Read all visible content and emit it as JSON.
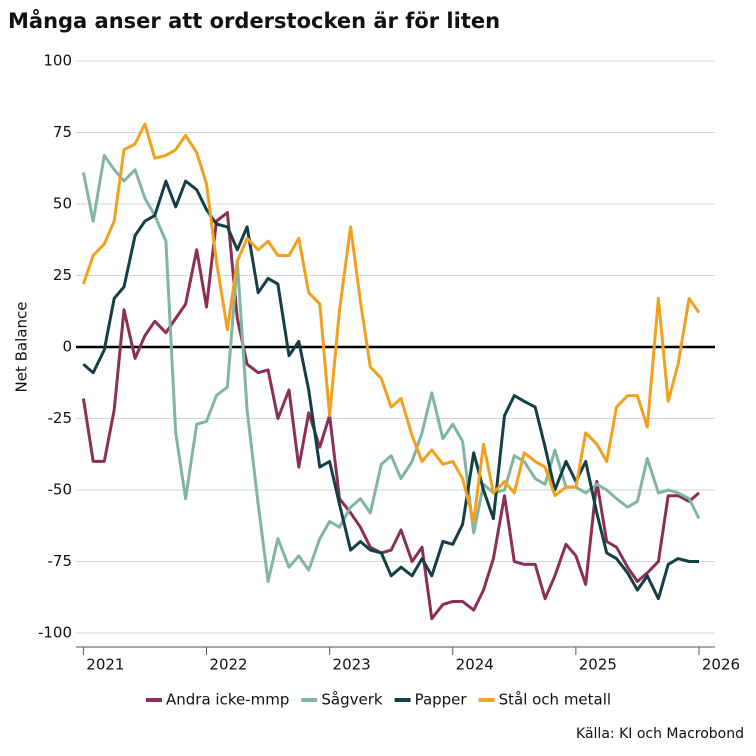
{
  "chart_data": {
    "type": "line",
    "title": "Många anser att orderstocken är för liten",
    "ylabel": "Net Balance",
    "source": "Källa: KI och Macrobond",
    "x": [
      2021,
      2021.08,
      2021.17,
      2021.25,
      2021.33,
      2021.42,
      2021.5,
      2021.58,
      2021.67,
      2021.75,
      2021.83,
      2021.92,
      2022,
      2022.08,
      2022.17,
      2022.25,
      2022.33,
      2022.42,
      2022.5,
      2022.58,
      2022.67,
      2022.75,
      2022.83,
      2022.92,
      2023,
      2023.08,
      2023.17,
      2023.25,
      2023.33,
      2023.42,
      2023.5,
      2023.58,
      2023.67,
      2023.75,
      2023.83,
      2023.92,
      2024,
      2024.08,
      2024.17,
      2024.25,
      2024.33,
      2024.42,
      2024.5,
      2024.58,
      2024.67,
      2024.75,
      2024.83,
      2024.92,
      2025,
      2025.08,
      2025.17,
      2025.25,
      2025.33,
      2025.42,
      2025.5,
      2025.58,
      2025.67,
      2025.75,
      2025.83,
      2025.92,
      2026
    ],
    "xlim": [
      2020.94,
      2026.13
    ],
    "xticks": [
      2021,
      2022,
      2023,
      2024,
      2025,
      2026
    ],
    "ylim": [
      -100,
      100
    ],
    "yticks": [
      -100,
      -75,
      -50,
      -25,
      0,
      25,
      50,
      75,
      100
    ],
    "grid": true,
    "zero_line": true,
    "legend": "bottom",
    "series": [
      {
        "name": "Andra icke-mmp",
        "color": "#8b2f57",
        "values": [
          -18,
          -40,
          -40,
          -22,
          13,
          -4,
          4,
          9,
          5,
          10,
          15,
          34,
          14,
          44,
          47,
          10,
          -6,
          -9,
          -8,
          -25,
          -15,
          -42,
          -23,
          -35,
          -24,
          -53,
          -58,
          -63,
          -70,
          -72,
          -71,
          -64,
          -75,
          -70,
          -95,
          -90,
          -89,
          -89,
          -92,
          -85,
          -74,
          -52,
          -75,
          -76,
          -76,
          -88,
          -80,
          -69,
          -73,
          -83,
          -47,
          -68,
          -70,
          -77,
          -82,
          -79,
          -75,
          -52,
          -52,
          -54,
          -51
        ]
      },
      {
        "name": "Sågverk",
        "color": "#80b5a5",
        "values": [
          61,
          44,
          67,
          62,
          58,
          62,
          52,
          46,
          37,
          -30,
          -53,
          -27,
          -26,
          -17,
          -14,
          30,
          -22,
          -55,
          -82,
          -67,
          -77,
          -73,
          -78,
          -67,
          -61,
          -63,
          -56,
          -53,
          -58,
          -41,
          -38,
          -46,
          -40,
          -30,
          -16,
          -32,
          -27,
          -33,
          -65,
          -48,
          -51,
          -50,
          -38,
          -40,
          -46,
          -48,
          -36,
          -49,
          -49,
          -51,
          -48,
          -50,
          -53,
          -56,
          -54,
          -39,
          -51,
          -50,
          -51,
          -53,
          -60
        ]
      },
      {
        "name": "Papper",
        "color": "#143f46",
        "values": [
          -6,
          -9,
          -1,
          17,
          21,
          39,
          44,
          46,
          58,
          49,
          58,
          55,
          48,
          43,
          42,
          34,
          42,
          19,
          24,
          22,
          -3,
          2,
          -15,
          -42,
          -40,
          -55,
          -71,
          -68,
          -71,
          -72,
          -80,
          -77,
          -80,
          -74,
          -80,
          -68,
          -69,
          -62,
          -37,
          -50,
          -60,
          -24,
          -17,
          -19,
          -21,
          -35,
          -50,
          -40,
          -47,
          -40,
          -58,
          -72,
          -74,
          -79,
          -85,
          -80,
          -88,
          -76,
          -74,
          -75,
          -75
        ]
      },
      {
        "name": "Stål och metall",
        "color": "#f2a01e",
        "values": [
          22,
          32,
          36,
          44,
          69,
          71,
          78,
          66,
          67,
          69,
          74,
          68,
          57,
          30,
          6,
          30,
          38,
          34,
          37,
          32,
          32,
          38,
          19,
          15,
          -24,
          13,
          42,
          16,
          -7,
          -11,
          -21,
          -18,
          -31,
          -40,
          -36,
          -41,
          -40,
          -46,
          -61,
          -34,
          -51,
          -47,
          -51,
          -37,
          -40,
          -42,
          -52,
          -49,
          -49,
          -30,
          -34,
          -40,
          -21,
          -17,
          -17,
          -28,
          17,
          -19,
          -6,
          17,
          12
        ]
      }
    ]
  }
}
